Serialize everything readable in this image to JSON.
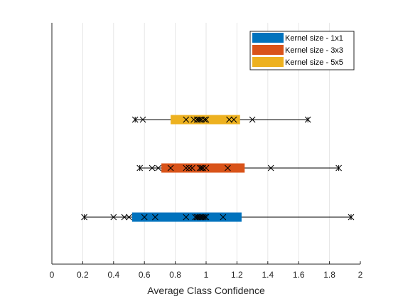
{
  "chart_data": {
    "type": "box",
    "orientation": "horizontal",
    "xlabel": "Average Class Confidence",
    "ylabel": "",
    "title": "",
    "xlim": [
      0,
      2
    ],
    "xticks": [
      0,
      0.2,
      0.4,
      0.6,
      0.8,
      1,
      1.2,
      1.4,
      1.6,
      1.8,
      2
    ],
    "xtick_labels": [
      "0",
      "0.2",
      "0.4",
      "0.6",
      "0.8",
      "1",
      "1.2",
      "1.4",
      "1.6",
      "1.8",
      "2"
    ],
    "grid": "vertical",
    "legend_position": "top-right",
    "series": [
      {
        "name": "Kernel size - 1x1",
        "color": "#0072BD",
        "min": 0.21,
        "q1": 0.52,
        "q3": 1.23,
        "max": 1.94,
        "points": [
          0.21,
          0.4,
          0.47,
          0.5,
          0.6,
          0.67,
          0.87,
          0.93,
          0.94,
          0.95,
          0.96,
          0.97,
          0.98,
          0.99,
          1.0,
          1.11,
          1.94
        ]
      },
      {
        "name": "Kernel size - 3x3",
        "color": "#D95319",
        "min": 0.57,
        "q1": 0.71,
        "q3": 1.25,
        "max": 1.86,
        "points": [
          0.57,
          0.65,
          0.69,
          0.77,
          0.87,
          0.89,
          0.91,
          0.96,
          0.97,
          0.98,
          1.0,
          1.14,
          1.42,
          1.86
        ]
      },
      {
        "name": "Kernel size - 5x5",
        "color": "#EDB120",
        "min": 0.54,
        "q1": 0.77,
        "q3": 1.22,
        "max": 1.66,
        "points": [
          0.54,
          0.59,
          0.87,
          0.92,
          0.94,
          0.95,
          0.96,
          0.97,
          0.99,
          1.0,
          1.15,
          1.18,
          1.3,
          1.66
        ]
      }
    ]
  }
}
